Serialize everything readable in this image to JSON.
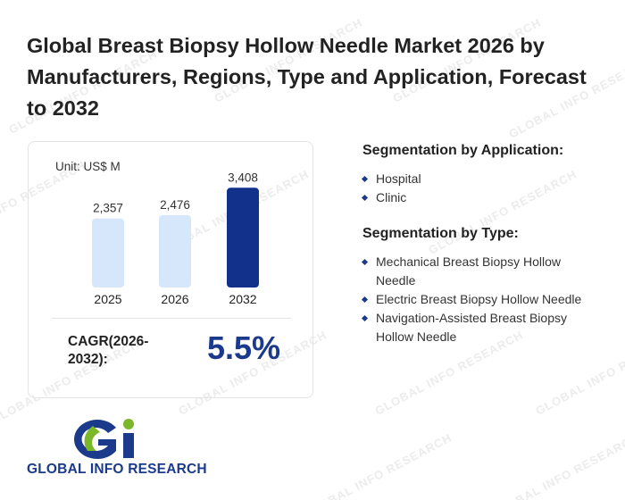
{
  "title": "Global Breast Biopsy Hollow Needle Market 2026 by Manufacturers, Regions, Type and Application, Forecast to 2032",
  "unit": "Unit: US$ M",
  "chart_data": {
    "type": "bar",
    "categories": [
      "2025",
      "2026",
      "2032"
    ],
    "values": [
      2357,
      2476,
      3408
    ],
    "value_labels": [
      "2,357",
      "2,476",
      "3,408"
    ],
    "colors": [
      "#d6e7fb",
      "#d6e7fb",
      "#12318a"
    ],
    "ylim": [
      0,
      3600
    ],
    "grid": false
  },
  "cagr": {
    "label": "CAGR(2026-2032):",
    "value": "5.5%"
  },
  "segment_application": {
    "title": "Segmentation by Application:",
    "items": [
      "Hospital",
      "Clinic"
    ]
  },
  "segment_type": {
    "title": "Segmentation by Type:",
    "items": [
      "Mechanical Breast Biopsy Hollow Needle",
      "Electric Breast Biopsy Hollow Needle",
      "Navigation-Assisted Breast Biopsy Hollow Needle"
    ]
  },
  "logo": {
    "text": "GLOBAL INFO RESEARCH",
    "mark": "Gi"
  },
  "watermark": "GLOBAL INFO RESEARCH"
}
